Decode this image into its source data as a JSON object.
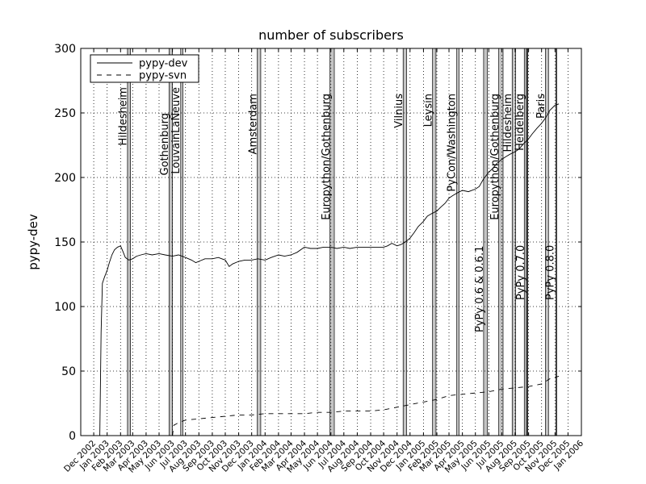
{
  "chart_data": {
    "type": "line",
    "title": "number of subscribers",
    "ylabel": "pypy-dev",
    "xlabel": "",
    "ylim": [
      0,
      300
    ],
    "yticks": [
      0,
      50,
      100,
      150,
      200,
      250,
      300
    ],
    "x_range": [
      "2002-11-01",
      "2006-01-01"
    ],
    "x_ticks": [
      "Dec 2002",
      "Jan 2003",
      "Feb 2003",
      "Mar 2003",
      "Apr 2003",
      "May 2003",
      "Jun 2003",
      "Jul 2003",
      "Aug 2003",
      "Sep 2003",
      "Oct 2003",
      "Nov 2003",
      "Dec 2003",
      "Jan 2004",
      "Feb 2004",
      "Mar 2004",
      "Apr 2004",
      "May 2004",
      "Jun 2004",
      "Jul 2004",
      "Aug 2004",
      "Sep 2004",
      "Oct 2004",
      "Nov 2004",
      "Dec 2004",
      "Jan 2005",
      "Feb 2005",
      "Mar 2005",
      "Apr 2005",
      "May 2005",
      "Jun 2005",
      "Jul 2005",
      "Aug 2005",
      "Sep 2005",
      "Oct 2005",
      "Nov 2005",
      "Dec 2005",
      "Jan 2006"
    ],
    "grid": true,
    "legend_position": "top-left",
    "series": [
      {
        "name": "pypy-dev",
        "style": "solid",
        "points": [
          [
            "2002-12-15",
            0
          ],
          [
            "2002-12-18",
            80
          ],
          [
            "2002-12-21",
            118
          ],
          [
            "2002-12-26",
            123
          ],
          [
            "2003-01-01",
            128
          ],
          [
            "2003-01-06",
            134
          ],
          [
            "2003-01-12",
            140
          ],
          [
            "2003-01-18",
            144
          ],
          [
            "2003-01-25",
            146
          ],
          [
            "2003-02-01",
            147
          ],
          [
            "2003-02-06",
            143
          ],
          [
            "2003-02-12",
            138
          ],
          [
            "2003-02-20",
            136
          ],
          [
            "2003-03-01",
            137
          ],
          [
            "2003-03-10",
            139
          ],
          [
            "2003-03-20",
            140
          ],
          [
            "2003-04-01",
            141
          ],
          [
            "2003-04-15",
            140
          ],
          [
            "2003-05-01",
            141
          ],
          [
            "2003-05-15",
            140
          ],
          [
            "2003-06-01",
            139
          ],
          [
            "2003-06-15",
            140
          ],
          [
            "2003-07-01",
            138
          ],
          [
            "2003-07-15",
            136
          ],
          [
            "2003-07-25",
            134
          ],
          [
            "2003-08-01",
            135
          ],
          [
            "2003-08-15",
            137
          ],
          [
            "2003-09-01",
            137
          ],
          [
            "2003-09-15",
            138
          ],
          [
            "2003-10-01",
            136
          ],
          [
            "2003-10-10",
            131
          ],
          [
            "2003-10-18",
            133
          ],
          [
            "2003-11-01",
            135
          ],
          [
            "2003-11-15",
            136
          ],
          [
            "2003-12-01",
            136
          ],
          [
            "2003-12-15",
            137
          ],
          [
            "2004-01-01",
            136
          ],
          [
            "2004-01-15",
            138
          ],
          [
            "2004-02-01",
            140
          ],
          [
            "2004-02-15",
            139
          ],
          [
            "2004-03-01",
            140
          ],
          [
            "2004-03-15",
            142
          ],
          [
            "2004-04-01",
            146
          ],
          [
            "2004-04-15",
            145
          ],
          [
            "2004-05-01",
            145
          ],
          [
            "2004-05-15",
            146
          ],
          [
            "2004-06-01",
            146
          ],
          [
            "2004-06-15",
            145
          ],
          [
            "2004-07-01",
            146
          ],
          [
            "2004-07-15",
            145
          ],
          [
            "2004-08-01",
            146
          ],
          [
            "2004-08-15",
            146
          ],
          [
            "2004-09-01",
            146
          ],
          [
            "2004-09-15",
            146
          ],
          [
            "2004-10-01",
            146
          ],
          [
            "2004-10-10",
            147
          ],
          [
            "2004-10-20",
            149
          ],
          [
            "2004-11-01",
            147
          ],
          [
            "2004-11-10",
            148
          ],
          [
            "2004-11-20",
            150
          ],
          [
            "2004-12-01",
            153
          ],
          [
            "2004-12-10",
            157
          ],
          [
            "2004-12-20",
            162
          ],
          [
            "2005-01-01",
            166
          ],
          [
            "2005-01-10",
            170
          ],
          [
            "2005-01-20",
            172
          ],
          [
            "2005-02-01",
            174
          ],
          [
            "2005-02-10",
            177
          ],
          [
            "2005-02-20",
            180
          ],
          [
            "2005-03-01",
            184
          ],
          [
            "2005-03-10",
            186
          ],
          [
            "2005-03-20",
            188
          ],
          [
            "2005-04-01",
            190
          ],
          [
            "2005-04-15",
            189
          ],
          [
            "2005-05-01",
            191
          ],
          [
            "2005-05-10",
            193
          ],
          [
            "2005-05-20",
            199
          ],
          [
            "2005-06-01",
            204
          ],
          [
            "2005-06-10",
            207
          ],
          [
            "2005-06-20",
            211
          ],
          [
            "2005-07-01",
            214
          ],
          [
            "2005-07-10",
            216
          ],
          [
            "2005-07-20",
            218
          ],
          [
            "2005-08-01",
            220
          ],
          [
            "2005-08-10",
            222
          ],
          [
            "2005-08-20",
            226
          ],
          [
            "2005-09-01",
            230
          ],
          [
            "2005-09-10",
            234
          ],
          [
            "2005-09-20",
            238
          ],
          [
            "2005-10-01",
            242
          ],
          [
            "2005-10-10",
            246
          ],
          [
            "2005-10-20",
            252
          ],
          [
            "2005-11-01",
            256
          ],
          [
            "2005-11-10",
            257
          ]
        ]
      },
      {
        "name": "pypy-svn",
        "style": "dashed",
        "points": [
          [
            "2003-06-01",
            0
          ],
          [
            "2003-06-04",
            8
          ],
          [
            "2003-06-15",
            10
          ],
          [
            "2003-07-01",
            12
          ],
          [
            "2003-08-01",
            13
          ],
          [
            "2003-09-01",
            14
          ],
          [
            "2003-10-01",
            15
          ],
          [
            "2003-11-01",
            16
          ],
          [
            "2003-12-01",
            16
          ],
          [
            "2004-01-01",
            17
          ],
          [
            "2004-02-01",
            17
          ],
          [
            "2004-03-01",
            17
          ],
          [
            "2004-04-01",
            17
          ],
          [
            "2004-05-01",
            18
          ],
          [
            "2004-06-01",
            18
          ],
          [
            "2004-07-01",
            19
          ],
          [
            "2004-08-01",
            19
          ],
          [
            "2004-09-01",
            19
          ],
          [
            "2004-10-01",
            20
          ],
          [
            "2004-11-01",
            22
          ],
          [
            "2004-12-01",
            24
          ],
          [
            "2005-01-01",
            26
          ],
          [
            "2005-02-01",
            28
          ],
          [
            "2005-03-01",
            31
          ],
          [
            "2005-04-01",
            32
          ],
          [
            "2005-05-01",
            33
          ],
          [
            "2005-06-01",
            34
          ],
          [
            "2005-07-01",
            36
          ],
          [
            "2005-08-01",
            37
          ],
          [
            "2005-09-01",
            38
          ],
          [
            "2005-10-01",
            40
          ],
          [
            "2005-10-20",
            44
          ],
          [
            "2005-11-10",
            46
          ]
        ]
      }
    ],
    "events": [
      {
        "label": "Hildesheim",
        "start": "2003-02-17",
        "end": "2003-02-23",
        "label_y": 270,
        "label_anchor": "top"
      },
      {
        "label": "Gothenburg",
        "start": "2003-05-24",
        "end": "2003-05-31",
        "label_y": 250,
        "label_anchor": "top"
      },
      {
        "label": "LouvainLaNeuve",
        "start": "2003-06-20",
        "end": "2003-06-24",
        "label_y": 270,
        "label_anchor": "top"
      },
      {
        "label": "Amsterdam",
        "start": "2003-12-14",
        "end": "2003-12-21",
        "label_y": 265,
        "label_anchor": "top"
      },
      {
        "label": "Europython/Gothenburg",
        "start": "2004-05-30",
        "end": "2004-06-08",
        "label_y": 265,
        "label_anchor": "top"
      },
      {
        "label": "Vilnius",
        "start": "2004-11-15",
        "end": "2004-11-22",
        "label_y": 265,
        "label_anchor": "top"
      },
      {
        "label": "Leysin",
        "start": "2005-01-22",
        "end": "2005-01-29",
        "label_y": 265,
        "label_anchor": "top"
      },
      {
        "label": "PyCon/Washington",
        "start": "2005-03-19",
        "end": "2005-03-23",
        "label_y": 265,
        "label_anchor": "top"
      },
      {
        "label": "PyPy 0.6 & 0.6.1",
        "start": "2005-05-20",
        "end": "2005-05-28",
        "label_y": 80,
        "label_anchor": "bottom"
      },
      {
        "label": "Europython/Gothenburg",
        "start": "2005-06-24",
        "end": "2005-07-03",
        "label_y": 265,
        "label_anchor": "top"
      },
      {
        "label": "Hildesheim",
        "start": "2005-07-25",
        "end": "2005-08-01",
        "label_y": 265,
        "label_anchor": "top"
      },
      {
        "label": "Heidelberg",
        "start": "2005-08-22",
        "end": "2005-08-29",
        "label_y": 265,
        "label_anchor": "top"
      },
      {
        "label": "PyPy 0.7.0",
        "start": "2005-08-27",
        "end": "2005-08-28",
        "label_y": 105,
        "label_anchor": "bottom"
      },
      {
        "label": "Paris",
        "start": "2005-10-10",
        "end": "2005-10-16",
        "label_y": 265,
        "label_anchor": "top"
      },
      {
        "label": "PyPy 0.8.0",
        "start": "2005-11-03",
        "end": "2005-11-04",
        "label_y": 105,
        "label_anchor": "bottom"
      }
    ]
  }
}
